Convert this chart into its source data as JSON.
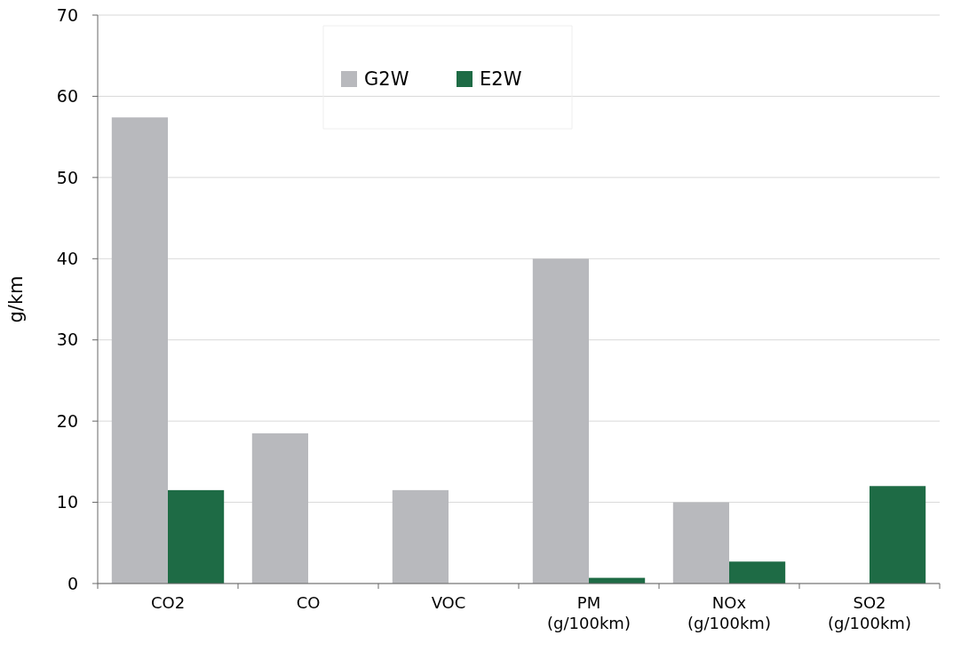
{
  "chart_data": {
    "type": "bar",
    "ylabel": "g/km",
    "categories": [
      "CO2",
      "CO",
      "VOC",
      "PM (g/100km)",
      "NOx (g/100km)",
      "SO2 (g/100km)"
    ],
    "series": [
      {
        "name": "G2W",
        "color": "#b8b9bd",
        "values": [
          57.4,
          18.5,
          11.5,
          40,
          10,
          null
        ]
      },
      {
        "name": "E2W",
        "color": "#1e6b45",
        "values": [
          11.5,
          null,
          null,
          0.7,
          2.7,
          12
        ]
      }
    ],
    "ylim": [
      0,
      70
    ],
    "yticks": [
      0,
      10,
      20,
      30,
      40,
      50,
      60,
      70
    ],
    "grid": "y",
    "legend": "top"
  }
}
